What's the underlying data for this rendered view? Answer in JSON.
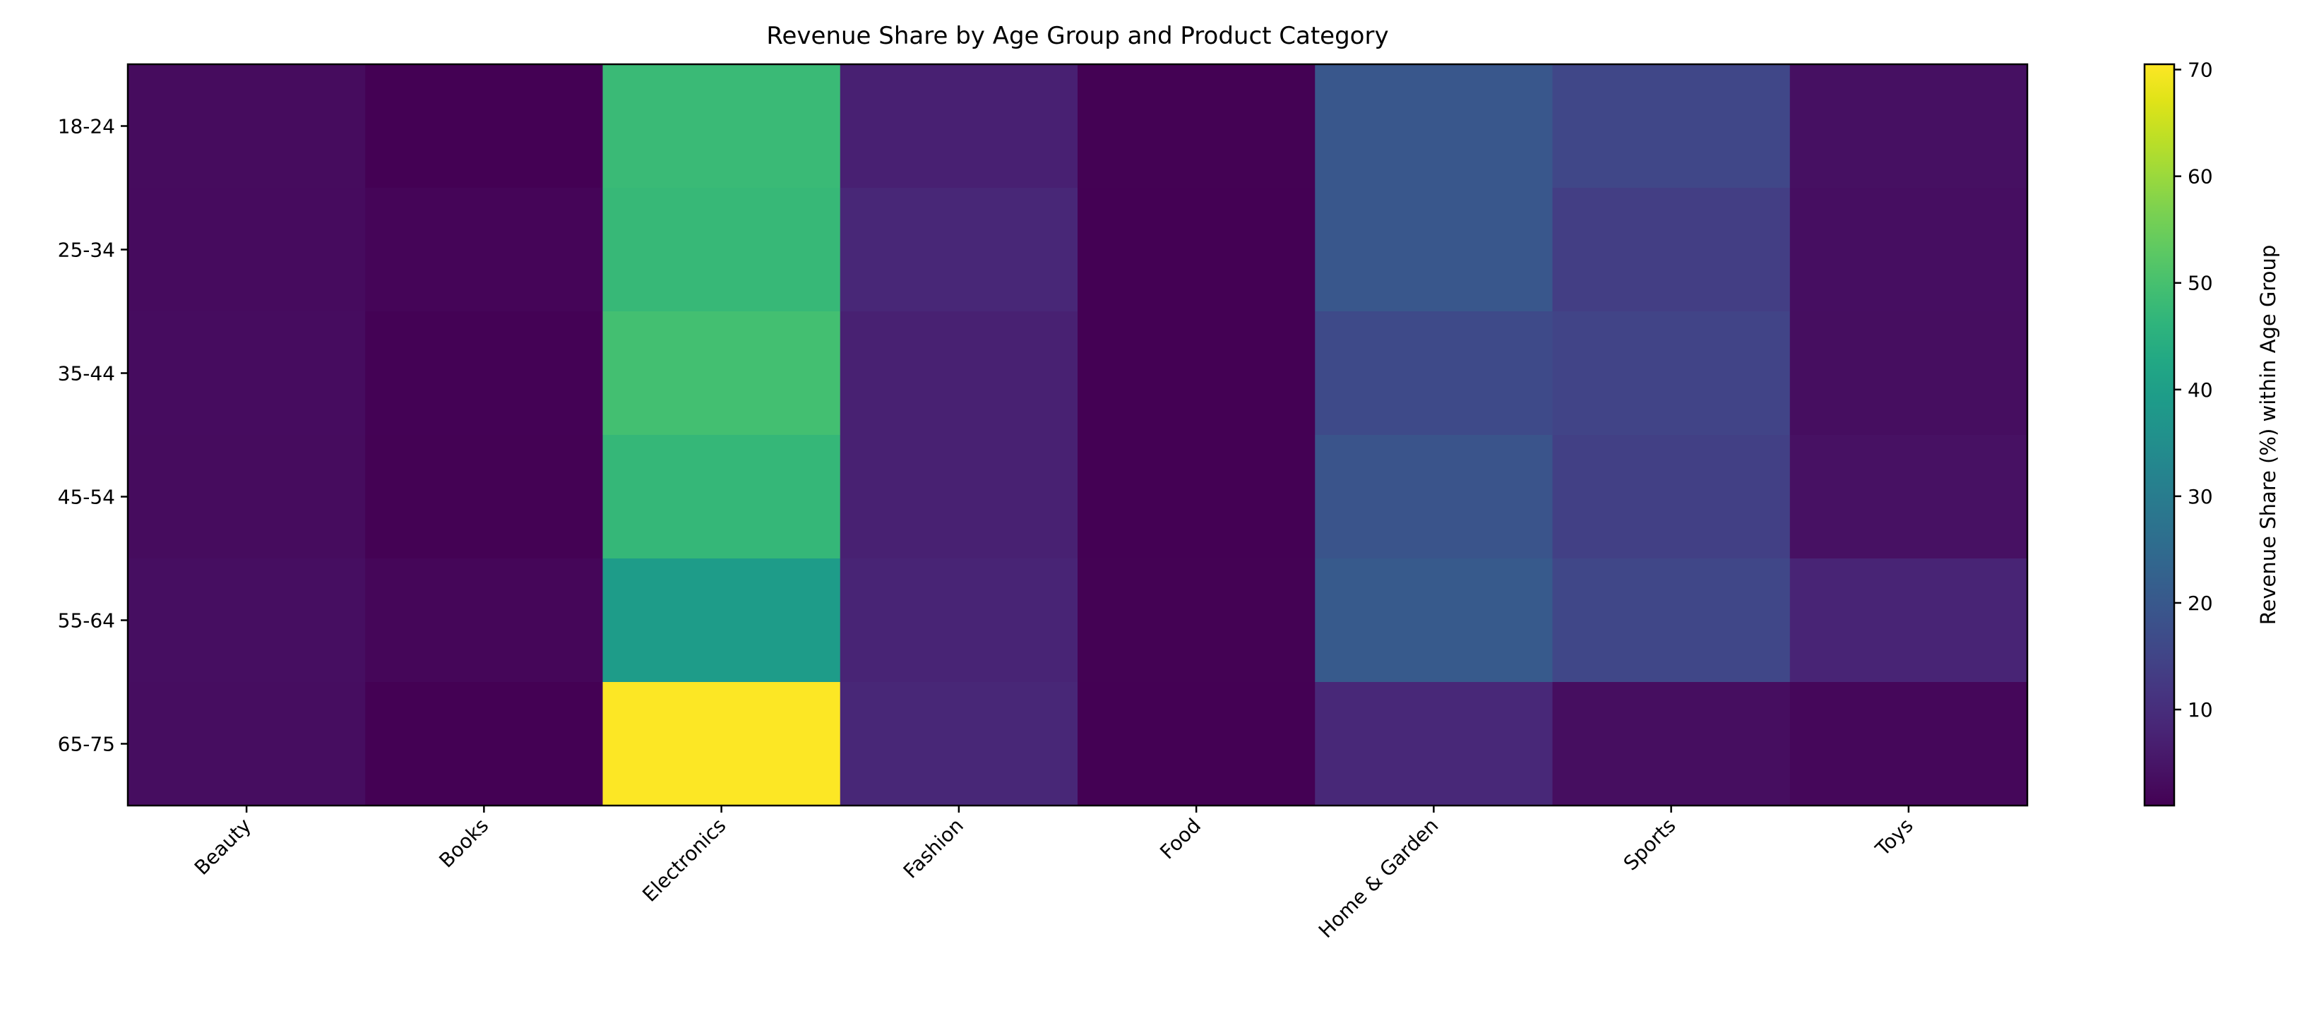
{
  "chart_data": {
    "type": "heatmap",
    "title": "Revenue Share by Age Group and Product Category",
    "xlabel": "",
    "ylabel": "",
    "x_categories": [
      "Beauty",
      "Books",
      "Electronics",
      "Fashion",
      "Food",
      "Home & Garden",
      "Sports",
      "Toys"
    ],
    "y_categories": [
      "18-24",
      "25-34",
      "35-44",
      "45-54",
      "55-64",
      "65-75"
    ],
    "values": [
      [
        3.1,
        1.0,
        48.0,
        7.2,
        1.1,
        19.8,
        15.6,
        3.8
      ],
      [
        3.0,
        1.8,
        47.5,
        8.6,
        1.0,
        19.8,
        13.5,
        3.6
      ],
      [
        3.2,
        1.2,
        49.5,
        7.3,
        1.0,
        16.5,
        15.0,
        3.5
      ],
      [
        3.1,
        1.1,
        47.2,
        7.4,
        1.0,
        19.0,
        14.0,
        4.0
      ],
      [
        3.6,
        2.0,
        39.2,
        8.0,
        1.1,
        20.5,
        15.6,
        7.9
      ],
      [
        3.4,
        1.0,
        70.4,
        8.5,
        1.0,
        8.8,
        3.5,
        2.2
      ]
    ],
    "colormap": "viridis",
    "color_range": [
      1.0,
      70.5
    ],
    "colorbar": {
      "label": "Revenue Share (%) within Age Group",
      "ticks": [
        10,
        20,
        30,
        40,
        50,
        60,
        70
      ]
    },
    "grid": false
  }
}
